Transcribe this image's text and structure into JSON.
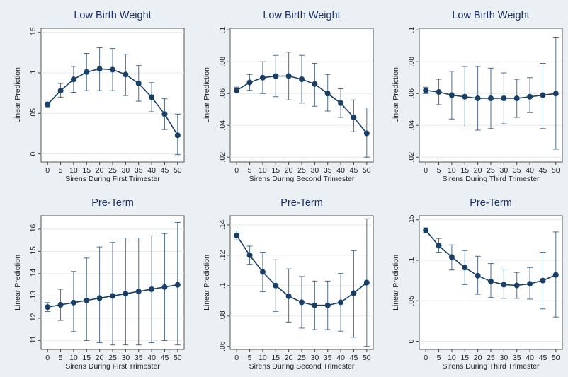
{
  "colors": {
    "background": "#eaf0f3",
    "plot_area": "#ffffff",
    "series": "#1a3f66",
    "title": "#1a2f66"
  },
  "chart_data": [
    {
      "type": "line",
      "title": "Low Birth Weight",
      "xlabel": "Sirens During First Trimester",
      "ylabel": "Linear Prediction",
      "x": [
        0,
        5,
        10,
        15,
        20,
        25,
        30,
        35,
        40,
        45,
        50
      ],
      "x_ticks": [
        "0",
        "5",
        "10",
        "15",
        "20",
        "25",
        "30",
        "35",
        "40",
        "45",
        "50"
      ],
      "y": [
        0.061,
        0.078,
        0.092,
        0.101,
        0.105,
        0.104,
        0.098,
        0.087,
        0.07,
        0.049,
        0.023
      ],
      "ci_low": [
        0.058,
        0.07,
        0.076,
        0.078,
        0.078,
        0.078,
        0.072,
        0.065,
        0.052,
        0.03,
        -0.001
      ],
      "ci_high": [
        0.064,
        0.087,
        0.108,
        0.124,
        0.131,
        0.13,
        0.123,
        0.109,
        0.088,
        0.068,
        0.049
      ],
      "ylim": [
        -0.01,
        0.155
      ],
      "yticks": [
        0,
        0.05,
        0.1,
        0.15
      ],
      "ytick_labels": [
        "0",
        ".05",
        ".1",
        ".15"
      ],
      "grid": true,
      "error_bars": "95% CI"
    },
    {
      "type": "line",
      "title": "Low Birth Weight",
      "xlabel": "Sirens During Second Trimester",
      "ylabel": "Linear Prediction",
      "x": [
        0,
        5,
        10,
        15,
        20,
        25,
        30,
        35,
        40,
        45,
        50
      ],
      "x_ticks": [
        "0",
        "5",
        "10",
        "15",
        "20",
        "25",
        "30",
        "35",
        "40",
        "45",
        "50"
      ],
      "y": [
        0.062,
        0.067,
        0.07,
        0.071,
        0.071,
        0.069,
        0.066,
        0.06,
        0.054,
        0.045,
        0.035
      ],
      "ci_low": [
        0.061,
        0.062,
        0.06,
        0.058,
        0.056,
        0.054,
        0.052,
        0.049,
        0.045,
        0.036,
        0.02
      ],
      "ci_high": [
        0.064,
        0.072,
        0.08,
        0.084,
        0.086,
        0.084,
        0.079,
        0.072,
        0.063,
        0.056,
        0.051
      ],
      "ylim": [
        0.017,
        0.101
      ],
      "yticks": [
        0.02,
        0.04,
        0.06,
        0.08,
        0.1
      ],
      "ytick_labels": [
        ".02",
        ".04",
        ".06",
        ".08",
        ".1"
      ],
      "grid": true,
      "error_bars": "95% CI"
    },
    {
      "type": "line",
      "title": "Low Birth Weight",
      "xlabel": "Sirens During Third Trimester",
      "ylabel": "Linear Prediction",
      "x": [
        0,
        5,
        10,
        15,
        20,
        25,
        30,
        35,
        40,
        45,
        50
      ],
      "x_ticks": [
        "0",
        "5",
        "10",
        "15",
        "20",
        "25",
        "30",
        "35",
        "40",
        "45",
        "50"
      ],
      "y": [
        0.062,
        0.061,
        0.059,
        0.058,
        0.057,
        0.057,
        0.057,
        0.057,
        0.058,
        0.059,
        0.06
      ],
      "ci_low": [
        0.06,
        0.053,
        0.044,
        0.039,
        0.037,
        0.038,
        0.041,
        0.045,
        0.048,
        0.038,
        0.025
      ],
      "ci_high": [
        0.064,
        0.069,
        0.074,
        0.077,
        0.077,
        0.076,
        0.073,
        0.069,
        0.07,
        0.079,
        0.095
      ],
      "ylim": [
        0.017,
        0.101
      ],
      "yticks": [
        0.02,
        0.04,
        0.06,
        0.08,
        0.1
      ],
      "ytick_labels": [
        ".02",
        ".04",
        ".06",
        ".08",
        ".1"
      ],
      "grid": true,
      "error_bars": "95% CI"
    },
    {
      "type": "line",
      "title": "Pre-Term",
      "xlabel": "Sirens During First Trimester",
      "ylabel": "Linear Prediction",
      "x": [
        0,
        5,
        10,
        15,
        20,
        25,
        30,
        35,
        40,
        45,
        50
      ],
      "x_ticks": [
        "0",
        "5",
        "10",
        "15",
        "20",
        "25",
        "30",
        "35",
        "40",
        "45",
        "50"
      ],
      "y": [
        0.125,
        0.126,
        0.127,
        0.128,
        0.129,
        0.13,
        0.131,
        0.132,
        0.133,
        0.134,
        0.135
      ],
      "ci_low": [
        0.123,
        0.119,
        0.114,
        0.11,
        0.109,
        0.108,
        0.108,
        0.108,
        0.109,
        0.11,
        0.108
      ],
      "ci_high": [
        0.127,
        0.133,
        0.141,
        0.147,
        0.152,
        0.154,
        0.156,
        0.156,
        0.157,
        0.158,
        0.163
      ],
      "ylim": [
        0.106,
        0.166
      ],
      "yticks": [
        0.11,
        0.12,
        0.13,
        0.14,
        0.15,
        0.16
      ],
      "ytick_labels": [
        ".11",
        ".12",
        ".13",
        ".14",
        ".15",
        ".16"
      ],
      "grid": true,
      "error_bars": "95% CI"
    },
    {
      "type": "line",
      "title": "Pre-Term",
      "xlabel": "Sirens During Second Trimester",
      "ylabel": "Linear Prediction",
      "x": [
        0,
        5,
        10,
        15,
        20,
        25,
        30,
        35,
        40,
        45,
        50
      ],
      "x_ticks": [
        "0",
        "5",
        "10",
        "15",
        "20",
        "25",
        "30",
        "35",
        "40",
        "45",
        "50"
      ],
      "y": [
        0.133,
        0.12,
        0.109,
        0.1,
        0.093,
        0.089,
        0.087,
        0.087,
        0.089,
        0.095,
        0.102
      ],
      "ci_low": [
        0.13,
        0.114,
        0.096,
        0.083,
        0.076,
        0.072,
        0.071,
        0.071,
        0.07,
        0.066,
        0.06
      ],
      "ci_high": [
        0.136,
        0.126,
        0.122,
        0.117,
        0.111,
        0.106,
        0.103,
        0.103,
        0.108,
        0.123,
        0.144
      ],
      "ylim": [
        0.058,
        0.146
      ],
      "yticks": [
        0.06,
        0.08,
        0.1,
        0.12,
        0.14
      ],
      "ytick_labels": [
        ".06",
        ".08",
        ".1",
        ".12",
        ".14"
      ],
      "grid": true,
      "error_bars": "95% CI"
    },
    {
      "type": "line",
      "title": "Pre-Term",
      "xlabel": "Sirens During Third Trimester",
      "ylabel": "Linear Prediction",
      "x": [
        0,
        5,
        10,
        15,
        20,
        25,
        30,
        35,
        40,
        45,
        50
      ],
      "x_ticks": [
        "0",
        "5",
        "10",
        "15",
        "20",
        "25",
        "30",
        "35",
        "40",
        "45",
        "50"
      ],
      "y": [
        0.137,
        0.118,
        0.104,
        0.091,
        0.081,
        0.074,
        0.07,
        0.069,
        0.071,
        0.075,
        0.082
      ],
      "ci_low": [
        0.134,
        0.11,
        0.088,
        0.07,
        0.058,
        0.054,
        0.053,
        0.053,
        0.052,
        0.04,
        0.03
      ],
      "ci_high": [
        0.14,
        0.127,
        0.119,
        0.112,
        0.105,
        0.096,
        0.089,
        0.085,
        0.091,
        0.11,
        0.135
      ],
      "ylim": [
        -0.01,
        0.155
      ],
      "yticks": [
        0,
        0.05,
        0.1,
        0.15
      ],
      "ytick_labels": [
        "0",
        ".05",
        ".1",
        ".15"
      ],
      "grid": true,
      "error_bars": "95% CI"
    }
  ]
}
